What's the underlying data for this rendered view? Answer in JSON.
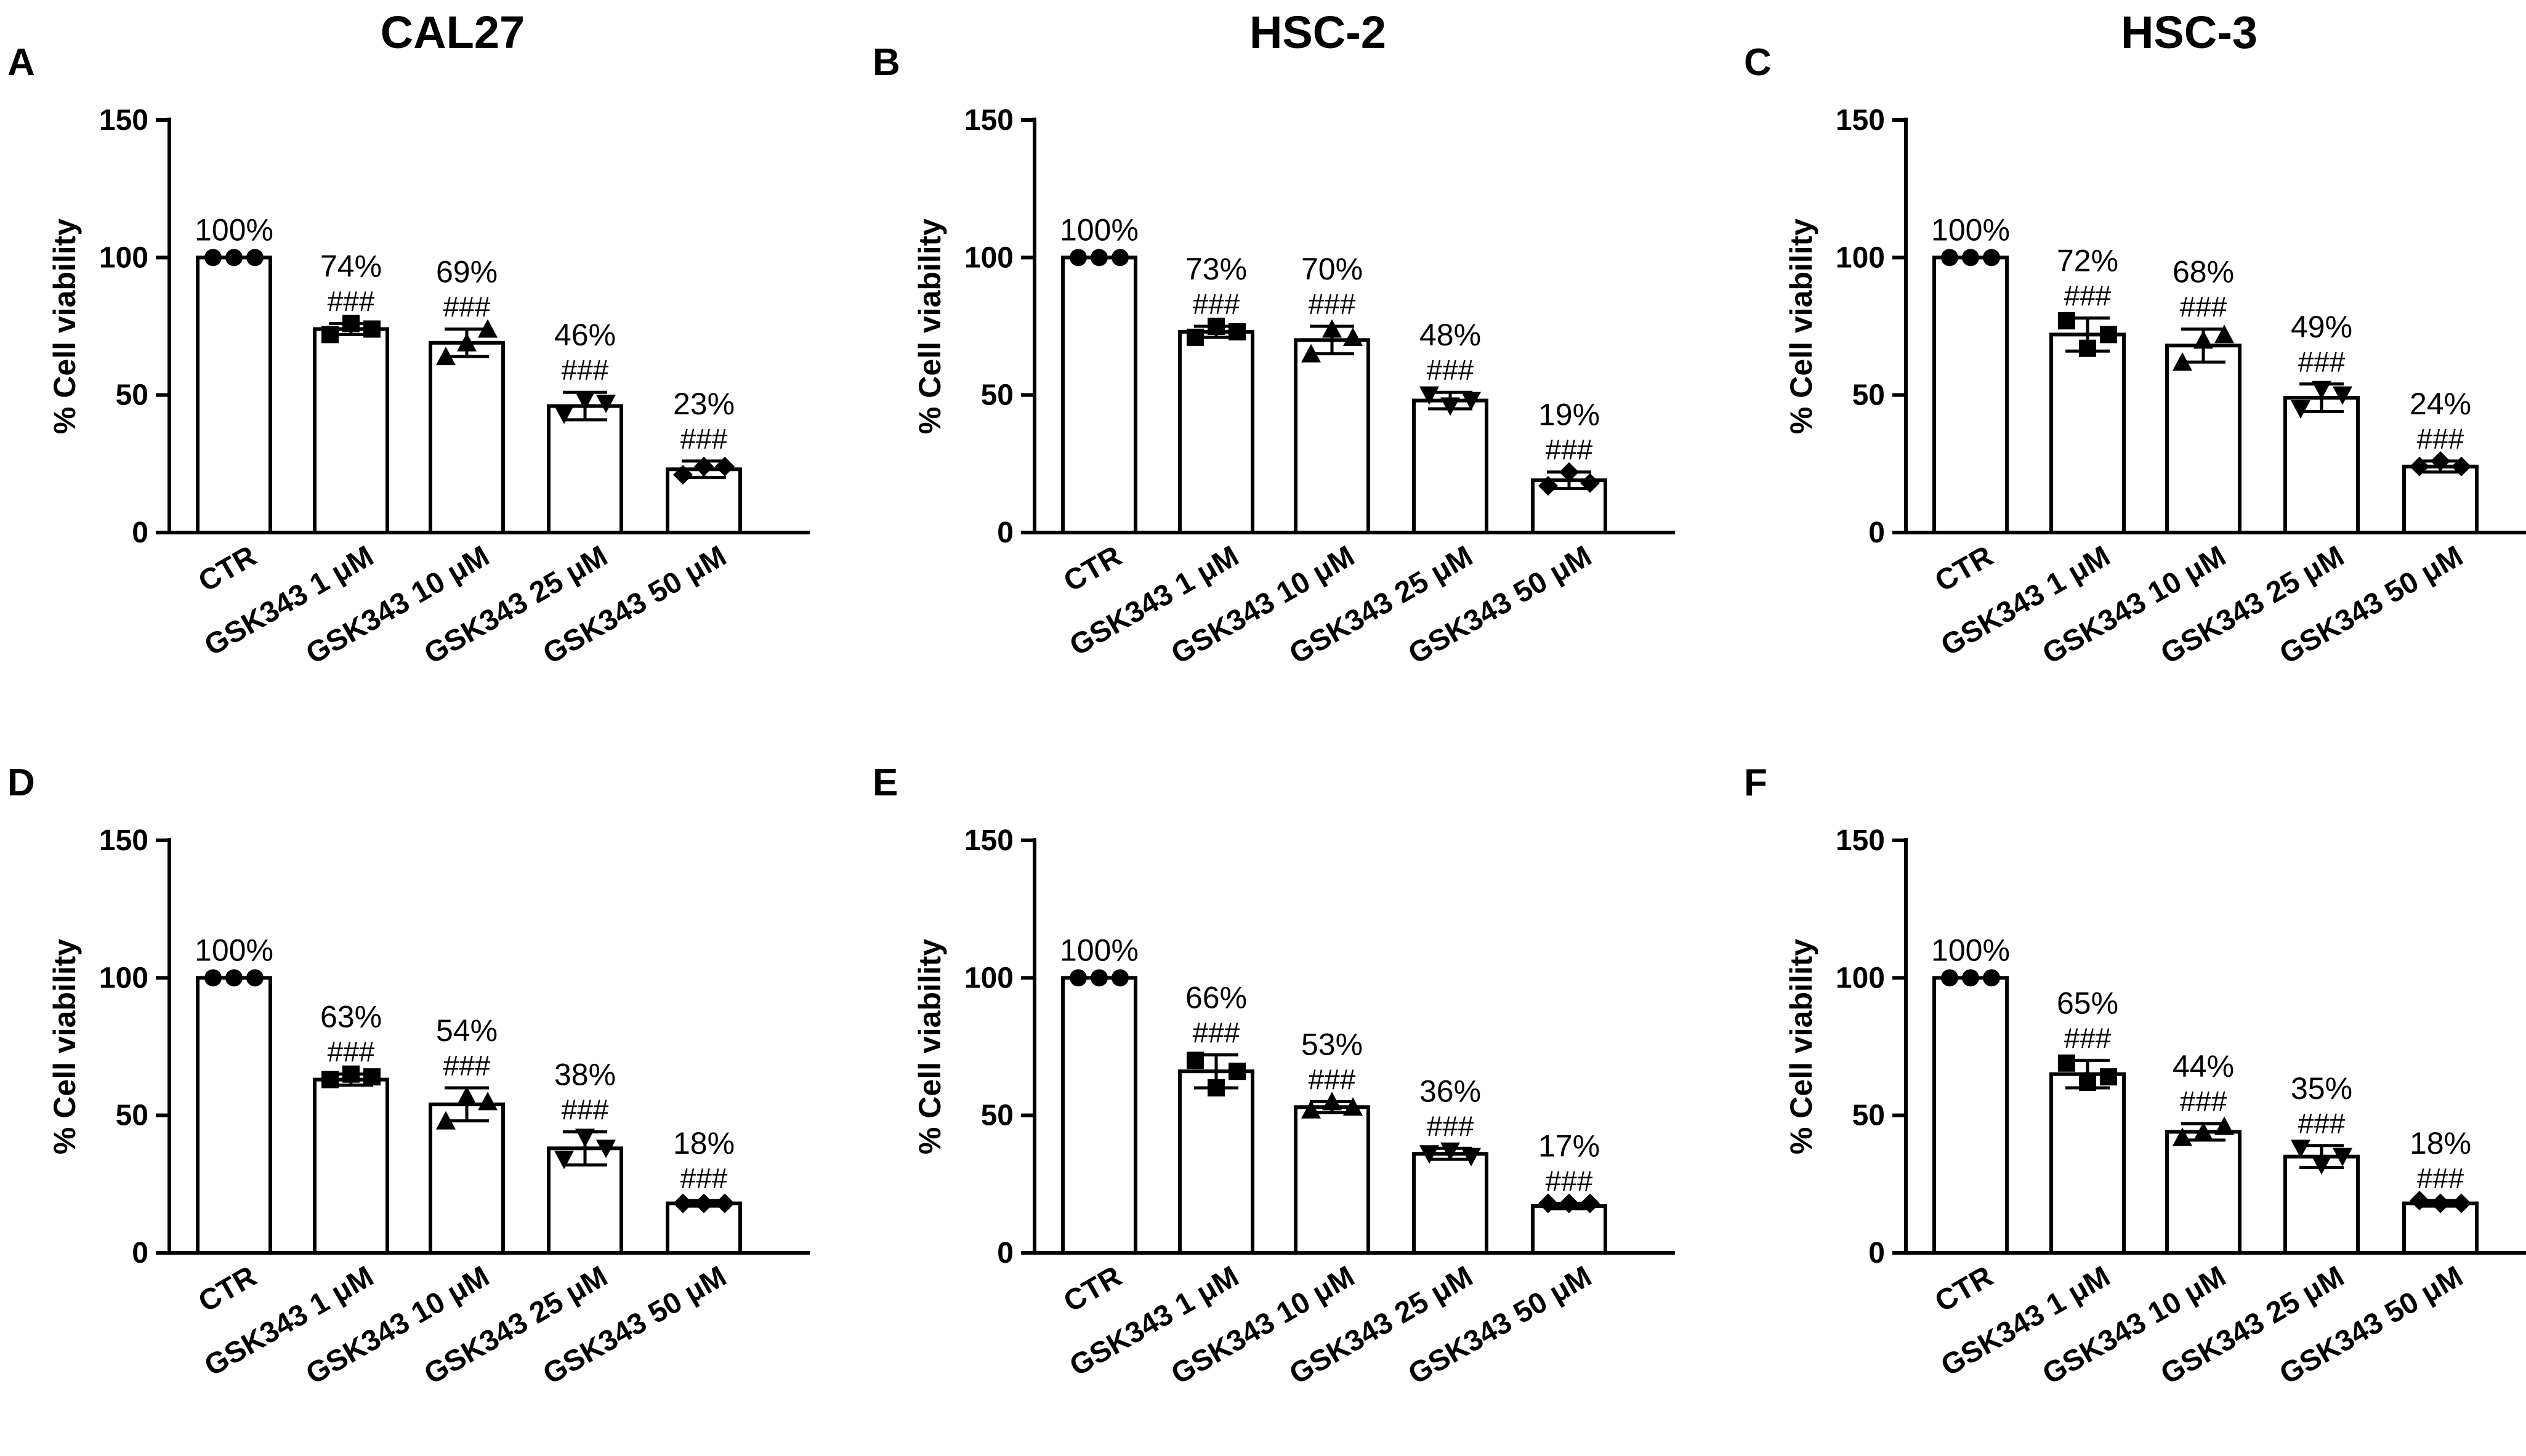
{
  "column_titles": [
    "CAL27",
    "HSC-2",
    "HSC-3"
  ],
  "panel_letters": [
    "A",
    "B",
    "C",
    "D",
    "E",
    "F"
  ],
  "chart_data": [
    {
      "panel": "A",
      "type": "bar",
      "title": "CAL27",
      "ylabel": "% Cell viability",
      "ylim": [
        0,
        150
      ],
      "yticks": [
        0,
        50,
        100,
        150
      ],
      "categories": [
        "CTR",
        "GSK343 1 μM",
        "GSK343 10 μM",
        "GSK343 25 μM",
        "GSK343 50 μM"
      ],
      "values": [
        100,
        74,
        69,
        46,
        23
      ],
      "errors": [
        0,
        2,
        5,
        5,
        3
      ],
      "points": [
        [
          100,
          100,
          100
        ],
        [
          72,
          76,
          74
        ],
        [
          64,
          69,
          74
        ],
        [
          43,
          48,
          47
        ],
        [
          21,
          24,
          24
        ]
      ],
      "markers": [
        "circle",
        "square",
        "triangle-up",
        "triangle-down",
        "diamond"
      ],
      "value_labels": [
        "100%",
        "74%",
        "69%",
        "46%",
        "23%"
      ],
      "sig_labels": [
        "",
        "###",
        "###",
        "###",
        "###"
      ]
    },
    {
      "panel": "B",
      "type": "bar",
      "ylabel": "% Cell viability",
      "ylim": [
        0,
        150
      ],
      "yticks": [
        0,
        50,
        100,
        150
      ],
      "categories": [
        "CTR",
        "GSK343 1 μM",
        "GSK343 10 μM",
        "GSK343 25 μM",
        "GSK343 50 μM"
      ],
      "values": [
        100,
        73,
        70,
        48,
        19
      ],
      "errors": [
        0,
        2,
        5,
        3,
        3
      ],
      "points": [
        [
          100,
          100,
          100
        ],
        [
          71,
          75,
          73
        ],
        [
          65,
          74,
          71
        ],
        [
          50,
          46,
          48
        ],
        [
          17,
          22,
          18
        ]
      ],
      "markers": [
        "circle",
        "square",
        "triangle-up",
        "triangle-down",
        "diamond"
      ],
      "value_labels": [
        "100%",
        "73%",
        "70%",
        "48%",
        "19%"
      ],
      "sig_labels": [
        "",
        "###",
        "###",
        "###",
        "###"
      ]
    },
    {
      "panel": "C",
      "type": "bar",
      "ylabel": "% Cell viability",
      "ylim": [
        0,
        150
      ],
      "yticks": [
        0,
        50,
        100,
        150
      ],
      "categories": [
        "CTR",
        "GSK343 1 μM",
        "GSK343 10 μM",
        "GSK343 25 μM",
        "GSK343 50 μM"
      ],
      "values": [
        100,
        72,
        68,
        49,
        24
      ],
      "errors": [
        0,
        6,
        6,
        5,
        2
      ],
      "points": [
        [
          100,
          100,
          100
        ],
        [
          77,
          67,
          72
        ],
        [
          62,
          70,
          72
        ],
        [
          45,
          52,
          50
        ],
        [
          24,
          26,
          24
        ]
      ],
      "markers": [
        "circle",
        "square",
        "triangle-up",
        "triangle-down",
        "diamond"
      ],
      "value_labels": [
        "100%",
        "72%",
        "68%",
        "49%",
        "24%"
      ],
      "sig_labels": [
        "",
        "###",
        "###",
        "###",
        "###"
      ]
    },
    {
      "panel": "D",
      "type": "bar",
      "ylabel": "% Cell viability",
      "ylim": [
        0,
        150
      ],
      "yticks": [
        0,
        50,
        100,
        150
      ],
      "categories": [
        "CTR",
        "GSK343 1 μM",
        "GSK343 10 μM",
        "GSK343 25 μM",
        "GSK343 50 μM"
      ],
      "values": [
        100,
        63,
        54,
        38,
        18
      ],
      "errors": [
        0,
        2,
        6,
        6,
        1
      ],
      "points": [
        [
          100,
          100,
          100
        ],
        [
          63,
          65,
          64
        ],
        [
          48,
          57,
          55
        ],
        [
          34,
          42,
          38
        ],
        [
          18,
          18,
          18
        ]
      ],
      "markers": [
        "circle",
        "square",
        "triangle-up",
        "triangle-down",
        "diamond"
      ],
      "value_labels": [
        "100%",
        "63%",
        "54%",
        "38%",
        "18%"
      ],
      "sig_labels": [
        "",
        "###",
        "###",
        "###",
        "###"
      ]
    },
    {
      "panel": "E",
      "type": "bar",
      "ylabel": "% Cell viability",
      "ylim": [
        0,
        150
      ],
      "yticks": [
        0,
        50,
        100,
        150
      ],
      "categories": [
        "CTR",
        "GSK343 1 μM",
        "GSK343 10 μM",
        "GSK343 25 μM",
        "GSK343 50 μM"
      ],
      "values": [
        100,
        66,
        53,
        36,
        17
      ],
      "errors": [
        0,
        6,
        2,
        2,
        1
      ],
      "points": [
        [
          100,
          100,
          100
        ],
        [
          70,
          60,
          66
        ],
        [
          52,
          55,
          53
        ],
        [
          36,
          37,
          35
        ],
        [
          18,
          18,
          18
        ]
      ],
      "markers": [
        "circle",
        "square",
        "triangle-up",
        "triangle-down",
        "diamond"
      ],
      "value_labels": [
        "100%",
        "66%",
        "53%",
        "36%",
        "17%"
      ],
      "sig_labels": [
        "",
        "###",
        "###",
        "###",
        "###"
      ]
    },
    {
      "panel": "F",
      "type": "bar",
      "ylabel": "% Cell viability",
      "ylim": [
        0,
        150
      ],
      "yticks": [
        0,
        50,
        100,
        150
      ],
      "categories": [
        "CTR",
        "GSK343 1 μM",
        "GSK343 10 μM",
        "GSK343 25 μM",
        "GSK343 50 μM"
      ],
      "values": [
        100,
        65,
        44,
        35,
        18
      ],
      "errors": [
        0,
        5,
        3,
        4,
        1
      ],
      "points": [
        [
          100,
          100,
          100
        ],
        [
          69,
          62,
          64
        ],
        [
          42,
          44,
          46
        ],
        [
          38,
          32,
          35
        ],
        [
          19,
          18,
          18
        ]
      ],
      "markers": [
        "circle",
        "square",
        "triangle-up",
        "triangle-down",
        "diamond"
      ],
      "value_labels": [
        "100%",
        "65%",
        "44%",
        "35%",
        "18%"
      ],
      "sig_labels": [
        "",
        "###",
        "###",
        "###",
        "###"
      ]
    }
  ]
}
